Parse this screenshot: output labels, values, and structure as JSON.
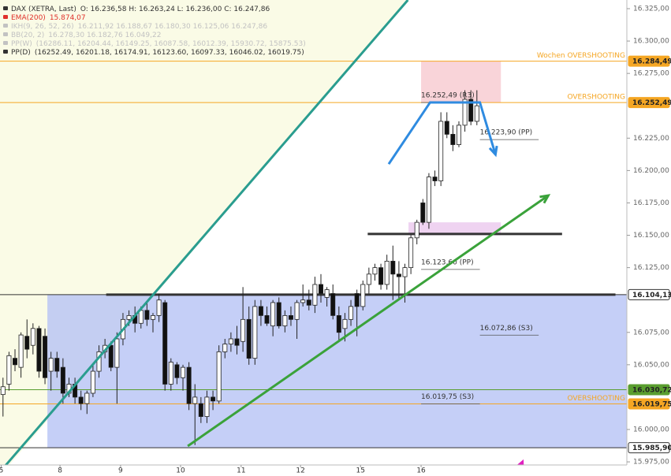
{
  "chart_data": {
    "type": "candlestick",
    "legend": [
      {
        "name": "DAX (XETRA, Last)",
        "text": "O: 16.236,58  H: 16.263,24  L: 16.236,00  C: 16.247,86",
        "color": "#333333"
      },
      {
        "name": "EMA(200)",
        "text": "15.874,07",
        "color": "#e0302a"
      },
      {
        "name": "IKH(9, 26, 52, 26)",
        "text": "16.211,92  16.188,67  16.180,30  16.125,06  16.247,86",
        "color": "#c2c2c2"
      },
      {
        "name": "BB(20, 2)",
        "text": "16.278,30  16.182,76  16.049,22",
        "color": "#c2c2c2"
      },
      {
        "name": "PP(W)",
        "text": "(16286.11, 16204.44, 16149.25, 16087.58, 16012.39, 15930.72, 15875.53)",
        "color": "#c2c2c2"
      },
      {
        "name": "PP(D)",
        "text": "(16252.49, 16201.18, 16174.91, 16123.60, 16097.33, 16046.02, 16019.75)",
        "color": "#333333"
      }
    ],
    "xlim": [
      -0.5,
      104
    ],
    "ylim": [
      15972.6,
      16331.7
    ],
    "xticks": [
      {
        "value": -0.3,
        "label": "5"
      },
      {
        "value": 9.5,
        "label": "8"
      },
      {
        "value": 19.6,
        "label": "9"
      },
      {
        "value": 29.6,
        "label": "10"
      },
      {
        "value": 39.7,
        "label": "11"
      },
      {
        "value": 49.6,
        "label": "12"
      },
      {
        "value": 59.6,
        "label": "15"
      },
      {
        "value": 69.7,
        "label": "16"
      }
    ],
    "yticks": [
      {
        "value": 16325,
        "label": "16.325,00"
      },
      {
        "value": 16300,
        "label": "16.300,00"
      },
      {
        "value": 16275,
        "label": "16.275,00"
      },
      {
        "value": 16225,
        "label": "16.225,00"
      },
      {
        "value": 16200,
        "label": "16.200,00"
      },
      {
        "value": 16175,
        "label": "16.175,00"
      },
      {
        "value": 16150,
        "label": "16.150,00"
      },
      {
        "value": 16125,
        "label": "16.125,00"
      },
      {
        "value": 16075,
        "label": "16.075,00"
      },
      {
        "value": 16050,
        "label": "16.050,00"
      },
      {
        "value": 16000,
        "label": "16.000,00"
      },
      {
        "value": 15975,
        "label": "15.975,00"
      }
    ],
    "x": [
      0,
      1,
      2,
      3,
      4,
      5,
      6,
      7,
      8,
      9,
      10,
      11,
      12,
      13,
      14,
      15,
      16,
      17,
      18,
      19,
      20,
      21,
      22,
      23,
      24,
      25,
      26,
      27,
      28,
      29,
      30,
      31,
      32,
      33,
      34,
      35,
      36,
      37,
      38,
      39,
      40,
      41,
      42,
      43,
      44,
      45,
      46,
      47,
      48,
      49,
      50,
      51,
      52,
      53,
      54,
      55,
      56,
      57,
      58,
      59,
      60,
      61,
      62,
      63,
      64,
      65,
      66,
      67,
      68,
      69,
      70,
      71,
      72,
      73,
      74,
      75,
      76,
      77,
      78,
      79
    ],
    "ohlc": [
      [
        16027,
        16040,
        16010,
        16033
      ],
      [
        16035,
        16060,
        16030,
        16057
      ],
      [
        16055,
        16062,
        16045,
        16050
      ],
      [
        16048,
        16075,
        16040,
        16073
      ],
      [
        16072,
        16085,
        16055,
        16062
      ],
      [
        16065,
        16082,
        16058,
        16078
      ],
      [
        16078,
        16080,
        16040,
        16045
      ],
      [
        16072,
        16078,
        16035,
        16040
      ],
      [
        16045,
        16060,
        16030,
        16055
      ],
      [
        16055,
        16060,
        16040,
        16045
      ],
      [
        16048,
        16055,
        16020,
        16028
      ],
      [
        16028,
        16040,
        16025,
        16035
      ],
      [
        16035,
        16040,
        16020,
        16025
      ],
      [
        16025,
        16030,
        16015,
        16020
      ],
      [
        16020,
        16030,
        16012,
        16028
      ],
      [
        16028,
        16050,
        16025,
        16045
      ],
      [
        16045,
        16065,
        16040,
        16060
      ],
      [
        16060,
        16070,
        16055,
        16065
      ],
      [
        16065,
        16068,
        16045,
        16048
      ],
      [
        16048,
        16075,
        16020,
        16070
      ],
      [
        16070,
        16090,
        16065,
        16085
      ],
      [
        16085,
        16092,
        16080,
        16088
      ],
      [
        16088,
        16095,
        16075,
        16082
      ],
      [
        16082,
        16095,
        16078,
        16092
      ],
      [
        16092,
        16098,
        16080,
        16085
      ],
      [
        16085,
        16090,
        16075,
        16088
      ],
      [
        16088,
        16105,
        16083,
        16100
      ],
      [
        16098,
        16100,
        16030,
        16035
      ],
      [
        16035,
        16055,
        16030,
        16052
      ],
      [
        16050,
        16052,
        16035,
        16040
      ],
      [
        16040,
        16050,
        16030,
        16048
      ],
      [
        16048,
        16052,
        16015,
        16020
      ],
      [
        16020,
        16035,
        15988,
        16025
      ],
      [
        16020,
        16025,
        16005,
        16010
      ],
      [
        16010,
        16030,
        16005,
        16025
      ],
      [
        16025,
        16030,
        16015,
        16022
      ],
      [
        16022,
        16065,
        16020,
        16060
      ],
      [
        16060,
        16070,
        16055,
        16066
      ],
      [
        16066,
        16075,
        16060,
        16070
      ],
      [
        16070,
        16080,
        16058,
        16065
      ],
      [
        16068,
        16110,
        16060,
        16085
      ],
      [
        16085,
        16095,
        16050,
        16055
      ],
      [
        16055,
        16100,
        16050,
        16095
      ],
      [
        16095,
        16100,
        16080,
        16088
      ],
      [
        16088,
        16095,
        16080,
        16082
      ],
      [
        16080,
        16100,
        16072,
        16098
      ],
      [
        16098,
        16102,
        16078,
        16080
      ],
      [
        16080,
        16092,
        16075,
        16088
      ],
      [
        16088,
        16095,
        16080,
        16085
      ],
      [
        16085,
        16100,
        16070,
        16098
      ],
      [
        16098,
        16112,
        16095,
        16100
      ],
      [
        16100,
        16108,
        16092,
        16096
      ],
      [
        16096,
        16118,
        16090,
        16112
      ],
      [
        16112,
        16120,
        16098,
        16105
      ],
      [
        16102,
        16110,
        16095,
        16108
      ],
      [
        16105,
        16112,
        16085,
        16088
      ],
      [
        16088,
        16095,
        16068,
        16075
      ],
      [
        16078,
        16090,
        16068,
        16085
      ],
      [
        16085,
        16100,
        16080,
        16095
      ],
      [
        16105,
        16108,
        16072,
        16095
      ],
      [
        16095,
        16115,
        16092,
        16112
      ],
      [
        16112,
        16125,
        16105,
        16120
      ],
      [
        16120,
        16128,
        16115,
        16125
      ],
      [
        16125,
        16128,
        16108,
        16112
      ],
      [
        16112,
        16135,
        16108,
        16130
      ],
      [
        16130,
        16142,
        16100,
        16120
      ],
      [
        16120,
        16130,
        16100,
        16118
      ],
      [
        16118,
        16128,
        16098,
        16125
      ],
      [
        16125,
        16150,
        16120,
        16148
      ],
      [
        16148,
        16162,
        16143,
        16160
      ],
      [
        16175,
        16178,
        16158,
        16160
      ],
      [
        16160,
        16198,
        16155,
        16195
      ],
      [
        16195,
        16200,
        16188,
        16192
      ],
      [
        16192,
        16245,
        16188,
        16238
      ],
      [
        16238,
        16245,
        16225,
        16228
      ],
      [
        16228,
        16235,
        16215,
        16220
      ],
      [
        16220,
        16238,
        16218,
        16235
      ],
      [
        16235,
        16262,
        16230,
        16255
      ],
      [
        16255,
        16262,
        16235,
        16238
      ],
      [
        16238,
        16262,
        16235,
        16250
      ]
    ],
    "zones": [
      {
        "x": [
          7.4,
          104
        ],
        "y": [
          15985.9,
          16104.13
        ],
        "color": "#b7c3f5"
      },
      {
        "x": [
          69.7,
          83
        ],
        "y": [
          16252.49,
          16284.49
        ],
        "color": "#f7c9d0"
      },
      {
        "x": [
          67.6,
          83
        ],
        "y": [
          16150,
          16160
        ],
        "color": "#ebc8ee"
      }
    ],
    "levels": [
      {
        "value": 16284.49,
        "label": "16.284,49",
        "note": "Wochen OVERSHOOTING",
        "color": "#f5a623"
      },
      {
        "value": 16252.49,
        "label": "16.252,49",
        "note": "OVERSHOOTING",
        "color": "#f5a623"
      },
      {
        "value": 16104.13,
        "label": "16.104,13",
        "color": "#333333"
      },
      {
        "value": 16030.72,
        "label": "16.030,72",
        "color": "#5a9e2f"
      },
      {
        "value": 16019.75,
        "label": "16.019,75",
        "note": "OVERSHOOTING",
        "color": "#f5a623"
      },
      {
        "value": 15985.9,
        "label": "15.985,90",
        "color": "#333333"
      }
    ],
    "segments": [
      {
        "x": [
          17.2,
          102.1
        ],
        "y": [
          16104.13,
          16104.13
        ],
        "color": "#333333"
      },
      {
        "x": [
          60.8,
          93.2
        ],
        "y": [
          16151,
          16151
        ],
        "color": "#333333"
      }
    ],
    "pivots": [
      {
        "value": 16252.49,
        "label": "16.252,49 (R3)",
        "x": [
          69.7,
          79.5
        ]
      },
      {
        "value": 16223.9,
        "label": "16.223,90 (PP)",
        "x": [
          79.5,
          89.3
        ]
      },
      {
        "value": 16123.6,
        "label": "16.123,60 (PP)",
        "x": [
          69.7,
          79.5
        ]
      },
      {
        "value": 16072.86,
        "label": "16.072,86 (S3)",
        "x": [
          79.5,
          89.3
        ]
      },
      {
        "value": 16019.75,
        "label": "16.019,75 (S3)",
        "x": [
          69.7,
          79.5
        ]
      }
    ],
    "trendlines": [
      {
        "x": [
          0.1,
          67.5
        ],
        "y": [
          15970.5,
          16331.7
        ],
        "color": "#2a9d8f",
        "arrow": false
      },
      {
        "x": [
          30.8,
          90.9
        ],
        "y": [
          15987.2,
          16180.7
        ],
        "color": "#3aa23a",
        "arrow": true
      },
      {
        "x": [
          64.3,
          71.2,
          79.5,
          82.1
        ],
        "y": [
          16205,
          16252.6,
          16252.6,
          16212.4
        ],
        "color": "#2f8be0",
        "arrow": true
      },
      {
        "x": [
          85.9,
          86.6
        ],
        "y": [
          15967.7,
          15975
        ],
        "color": "#e020c0",
        "arrow": true
      }
    ],
    "up_color": "#ffffff",
    "down_color": "#111111"
  }
}
